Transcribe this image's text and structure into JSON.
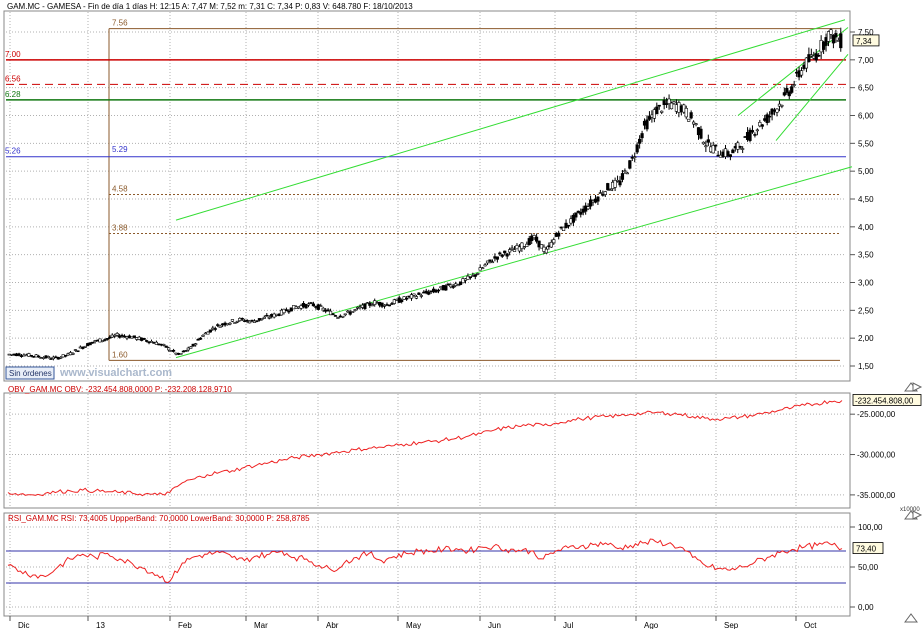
{
  "header": {
    "main": "GAM.MC - GAMESA - Fin de día 1 días H: 12:15  A: 7,47  M: 7,52  m: 7,31  C: 7,34  P: 0,83  V: 648.780  F: 18/10/2013",
    "obv": "OBV_GAM.MC  OBV: -232.454.808,0000   P: -232.208.128,9710",
    "rsi": "RSI_GAM.MC  RSI: 73,4005  UppperBand: 70,0000  LowerBand: 30,0000   P: 258,8785"
  },
  "watermark": "www.visualchart.com",
  "orders_button": "Sin órdenes",
  "scale_factor": "x10000",
  "colors": {
    "up_candle": "#ffffff",
    "down_candle": "#000000",
    "channel": "#33dd33",
    "resistance": "#cc0000",
    "support_green": "#117711",
    "fib_blue": "#3333cc",
    "fib_brown": "#8b5a2b",
    "obv_line": "#ee2222",
    "rsi_line": "#ee2222",
    "band_line": "#3333aa",
    "price_tag_bg": "#fffbe0"
  },
  "chart_data": [
    {
      "type": "candlestick",
      "symbol": "GAM.MC",
      "name": "GAMESA",
      "x_tick_labels": [
        "Dic",
        "13",
        "Feb",
        "Mar",
        "Abr",
        "May",
        "Jun",
        "Jul",
        "Ago",
        "Sep",
        "Oct"
      ],
      "y_tick_labels": [
        "7,50",
        "7,00",
        "6,50",
        "6,00",
        "5,50",
        "5,00",
        "4,50",
        "4,00",
        "3,50",
        "3,00",
        "2,50",
        "2,00",
        "1,50"
      ],
      "ylim": [
        1.35,
        7.75
      ],
      "last_price_label": "7,34",
      "last_price": 7.34,
      "grid": true,
      "weekly_closes": [
        1.71,
        1.69,
        1.66,
        1.64,
        1.7,
        1.82,
        1.93,
        1.98,
        2.05,
        2.03,
        1.98,
        1.93,
        1.84,
        1.7,
        1.82,
        2.05,
        2.2,
        2.28,
        2.33,
        2.3,
        2.36,
        2.42,
        2.52,
        2.58,
        2.6,
        2.5,
        2.4,
        2.46,
        2.56,
        2.64,
        2.6,
        2.68,
        2.74,
        2.8,
        2.85,
        2.93,
        3.0,
        3.1,
        3.3,
        3.47,
        3.55,
        3.65,
        3.8,
        3.55,
        3.9,
        4.1,
        4.3,
        4.5,
        4.7,
        4.8,
        5.2,
        5.8,
        6.1,
        6.2,
        6.15,
        5.9,
        5.5,
        5.35,
        5.3,
        5.5,
        5.75,
        5.95,
        6.2,
        6.5,
        6.9,
        7.1,
        7.45,
        7.34
      ],
      "hlines": [
        {
          "label": "7.00",
          "value": 7.0,
          "style": "solid-red"
        },
        {
          "label": "6.56",
          "value": 6.56,
          "style": "dashed-red"
        },
        {
          "label": "6.28",
          "value": 6.28,
          "style": "solid-green"
        },
        {
          "label": "5.26",
          "value": 5.26,
          "style": "solid-blue"
        }
      ],
      "fib_levels": [
        {
          "label": "7.56",
          "value": 7.56,
          "style": "solid-brown"
        },
        {
          "label": "5.29",
          "value": 5.29,
          "style": "solid-blue"
        },
        {
          "label": "4.58",
          "value": 4.58,
          "style": "dotted-brown"
        },
        {
          "label": "3.88",
          "value": 3.88,
          "style": "dotted-brown"
        },
        {
          "label": "1.60",
          "value": 1.6,
          "style": "solid-brown"
        }
      ]
    },
    {
      "type": "line",
      "name": "OBV",
      "y_tick_labels": [
        "-25.000,00",
        "-30.000,00",
        "-35.000,00"
      ],
      "ylim": [
        -36500,
        -22500
      ],
      "last_value_label": "-232.454.808,00",
      "values": [
        -34700,
        -34900,
        -35000,
        -34800,
        -34600,
        -34500,
        -34400,
        -34500,
        -34600,
        -34700,
        -34800,
        -34900,
        -35000,
        -34700,
        -33500,
        -33000,
        -32500,
        -32200,
        -32000,
        -31600,
        -31300,
        -31000,
        -30700,
        -30400,
        -30200,
        -30000,
        -29800,
        -29600,
        -29400,
        -29200,
        -29100,
        -28900,
        -28700,
        -28500,
        -28400,
        -28200,
        -28000,
        -27700,
        -27400,
        -27000,
        -26700,
        -26500,
        -26300,
        -26400,
        -26100,
        -25800,
        -25600,
        -25400,
        -25300,
        -25200,
        -25000,
        -24900,
        -24800,
        -24900,
        -25000,
        -25300,
        -25500,
        -25600,
        -25500,
        -25300,
        -25100,
        -24800,
        -24500,
        -24200,
        -23900,
        -23700,
        -23400,
        -23300
      ]
    },
    {
      "type": "line",
      "name": "RSI",
      "y_tick_labels": [
        "100,00",
        "50,00",
        "0,00"
      ],
      "ylim": [
        0,
        100
      ],
      "upper_band": 70,
      "lower_band": 30,
      "last_value_label": "73,40",
      "values": [
        52,
        45,
        40,
        38,
        50,
        60,
        66,
        62,
        67,
        60,
        54,
        48,
        40,
        32,
        55,
        63,
        66,
        68,
        62,
        58,
        64,
        66,
        70,
        62,
        60,
        52,
        46,
        55,
        62,
        67,
        58,
        63,
        67,
        70,
        70,
        72,
        73,
        70,
        75,
        76,
        72,
        71,
        70,
        60,
        70,
        74,
        76,
        78,
        80,
        73,
        77,
        80,
        82,
        79,
        75,
        62,
        52,
        48,
        46,
        50,
        56,
        62,
        68,
        72,
        75,
        77,
        79,
        73
      ]
    }
  ]
}
